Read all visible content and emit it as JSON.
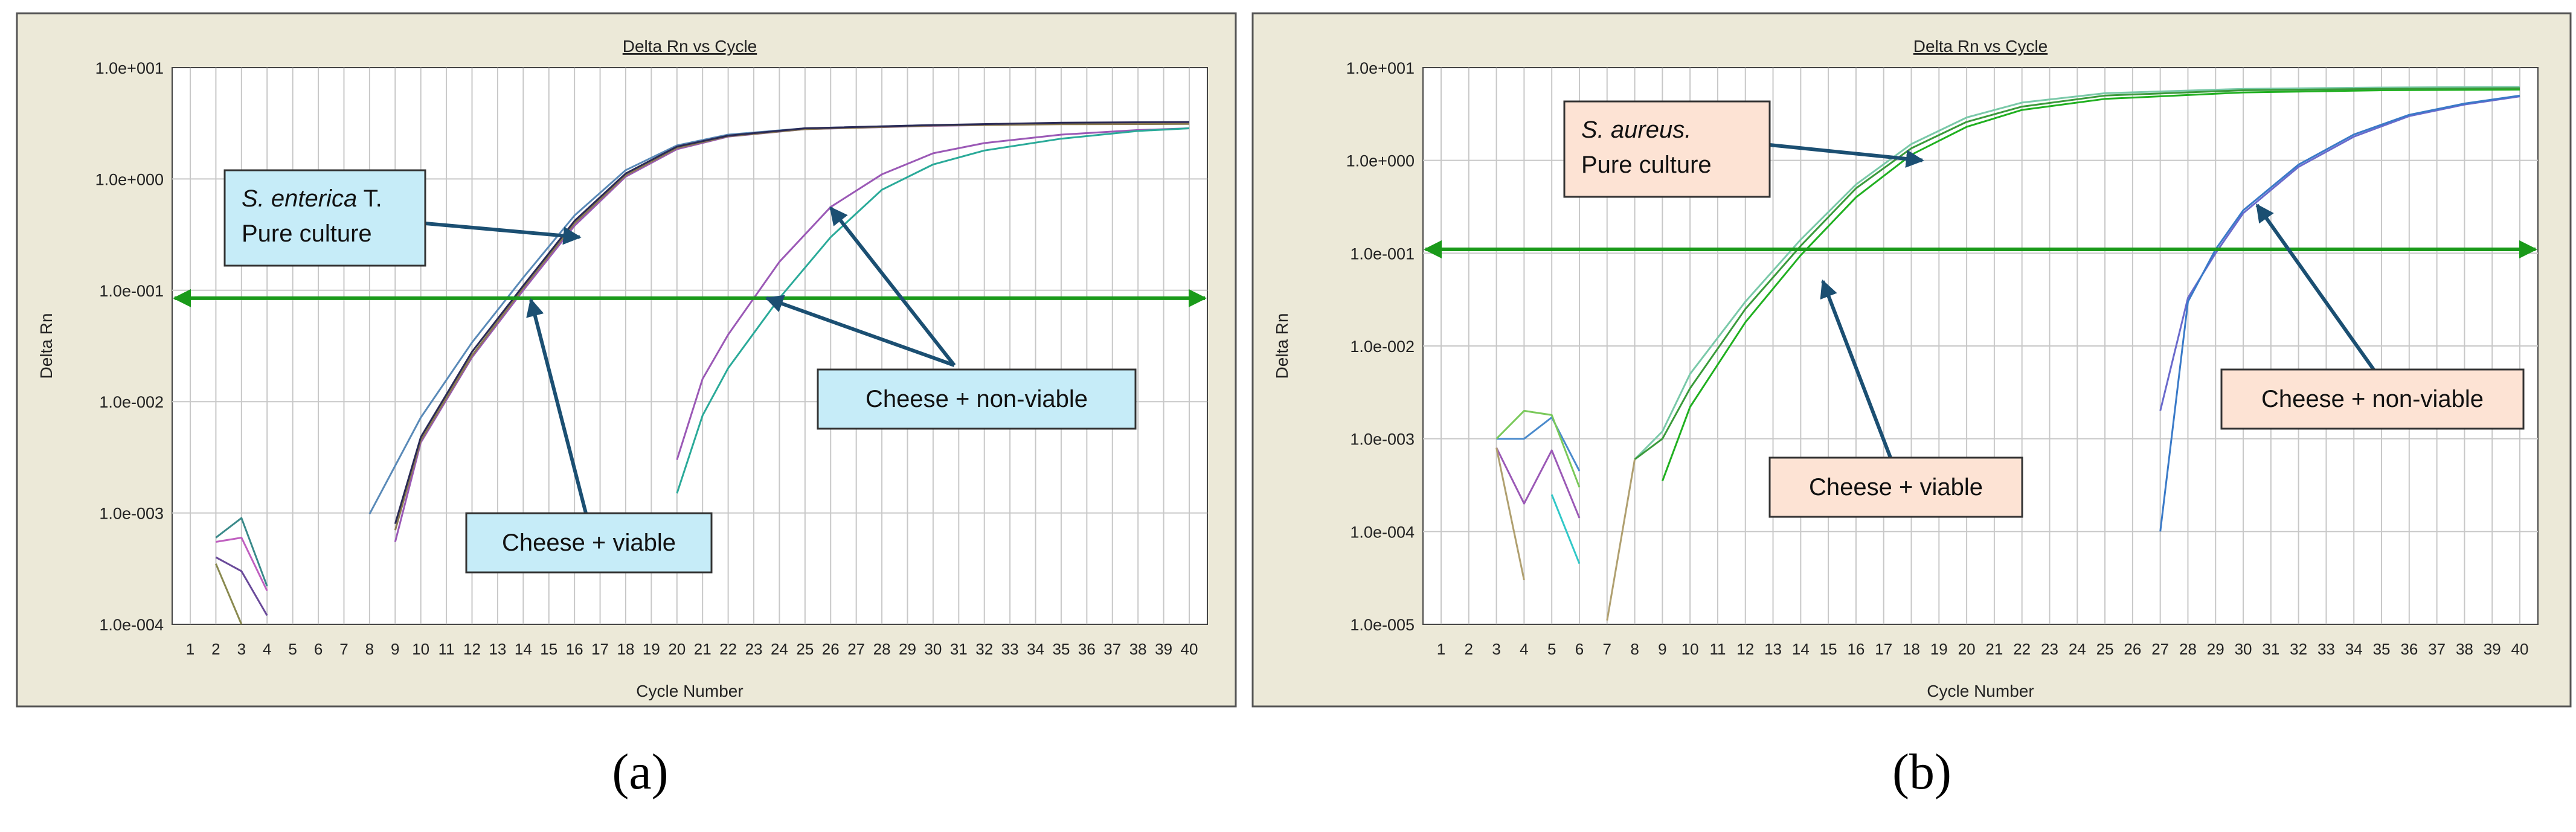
{
  "chart_data": [
    {
      "type": "line",
      "panel_label": "(a)",
      "title": "Delta Rn vs Cycle",
      "xlabel": "Cycle Number",
      "ylabel": "Delta Rn",
      "y_scale": "log",
      "xlim": [
        1,
        40
      ],
      "ylim": [
        0.0001,
        10
      ],
      "x_ticks": [
        1,
        2,
        3,
        4,
        5,
        6,
        7,
        8,
        9,
        10,
        11,
        12,
        13,
        14,
        15,
        16,
        17,
        18,
        19,
        20,
        21,
        22,
        23,
        24,
        25,
        26,
        27,
        28,
        29,
        30,
        31,
        32,
        33,
        34,
        35,
        36,
        37,
        38,
        39,
        40
      ],
      "y_ticks": [
        0.0001,
        0.001,
        0.01,
        0.1,
        1,
        10
      ],
      "y_tick_labels": [
        "1.0e-004",
        "1.0e-003",
        "1.0e-002",
        "1.0e-001",
        "1.0e+000",
        "1.0e+001"
      ],
      "grid": true,
      "threshold": 0.085,
      "threshold_color": "#1a9a1a",
      "series": [
        {
          "color": "#5a8ab8",
          "points": [
            [
              8,
              0.00098
            ],
            [
              10,
              0.0072
            ],
            [
              12,
              0.034
            ],
            [
              14,
              0.13
            ],
            [
              16,
              0.47
            ],
            [
              18,
              1.2
            ],
            [
              20,
              2.0
            ],
            [
              22,
              2.5
            ],
            [
              25,
              2.85
            ],
            [
              30,
              3.05
            ],
            [
              35,
              3.15
            ],
            [
              40,
              3.2
            ]
          ]
        },
        {
          "color": "#9b59b6",
          "points": [
            [
              9,
              0.00055
            ],
            [
              10,
              0.0043
            ],
            [
              12,
              0.025
            ],
            [
              14,
              0.1
            ],
            [
              16,
              0.38
            ],
            [
              18,
              1.05
            ],
            [
              20,
              1.85
            ],
            [
              22,
              2.4
            ],
            [
              25,
              2.8
            ],
            [
              30,
              3.0
            ],
            [
              35,
              3.12
            ],
            [
              40,
              3.15
            ]
          ]
        },
        {
          "color": "#8a7a50",
          "points": [
            [
              9,
              0.0007
            ],
            [
              10,
              0.0045
            ],
            [
              12,
              0.026
            ],
            [
              14,
              0.105
            ],
            [
              16,
              0.4
            ],
            [
              18,
              1.08
            ],
            [
              20,
              1.9
            ],
            [
              22,
              2.42
            ],
            [
              25,
              2.8
            ],
            [
              30,
              3.02
            ],
            [
              35,
              3.1
            ],
            [
              40,
              3.12
            ]
          ]
        },
        {
          "color": "#2a2a55",
          "points": [
            [
              9,
              0.0008
            ],
            [
              10,
              0.0048
            ],
            [
              12,
              0.028
            ],
            [
              14,
              0.11
            ],
            [
              16,
              0.42
            ],
            [
              18,
              1.12
            ],
            [
              20,
              1.95
            ],
            [
              22,
              2.45
            ],
            [
              25,
              2.85
            ],
            [
              30,
              3.05
            ],
            [
              35,
              3.2
            ],
            [
              40,
              3.25
            ]
          ]
        },
        {
          "color": "#9b59b6",
          "points": [
            [
              20,
              0.003
            ],
            [
              21,
              0.016
            ],
            [
              22,
              0.04
            ],
            [
              24,
              0.18
            ],
            [
              26,
              0.56
            ],
            [
              28,
              1.1
            ],
            [
              30,
              1.7
            ],
            [
              32,
              2.1
            ],
            [
              35,
              2.5
            ],
            [
              38,
              2.75
            ],
            [
              40,
              2.85
            ]
          ]
        },
        {
          "color": "#2aaa99",
          "points": [
            [
              20,
              0.0015
            ],
            [
              21,
              0.0075
            ],
            [
              22,
              0.02
            ],
            [
              24,
              0.085
            ],
            [
              26,
              0.3
            ],
            [
              28,
              0.8
            ],
            [
              30,
              1.35
            ],
            [
              32,
              1.8
            ],
            [
              35,
              2.3
            ],
            [
              38,
              2.7
            ],
            [
              40,
              2.85
            ]
          ]
        },
        {
          "color": "#3a8a8a",
          "points": [
            [
              2,
              0.0006
            ],
            [
              3,
              0.0009
            ],
            [
              4,
              0.00022
            ]
          ]
        },
        {
          "color": "#c060c0",
          "points": [
            [
              2,
              0.00055
            ],
            [
              3,
              0.0006
            ],
            [
              4,
              0.0002
            ]
          ]
        },
        {
          "color": "#6a4a9a",
          "points": [
            [
              2,
              0.0004
            ],
            [
              3,
              0.0003
            ],
            [
              4,
              0.00012
            ]
          ]
        },
        {
          "color": "#8a8a50",
          "points": [
            [
              2,
              0.00035
            ],
            [
              3,
              0.0001
            ]
          ]
        }
      ],
      "annotations": [
        {
          "text_html": "<tspan font-style=\"italic\">S. enterica</tspan> T.",
          "line2": "Pure culture",
          "type": "box",
          "fill": "#c6ecf8",
          "arrows": [
            [
              16.2,
              0.3
            ]
          ]
        },
        {
          "text": "Cheese + non-viable",
          "type": "box",
          "fill": "#c6ecf8",
          "arrows": [
            [
              26,
              0.55
            ],
            [
              23.5,
              0.085
            ]
          ]
        },
        {
          "text": "Cheese + viable",
          "type": "box",
          "fill": "#c6ecf8",
          "arrows": [
            [
              14.3,
              0.082
            ]
          ]
        }
      ]
    },
    {
      "type": "line",
      "panel_label": "(b)",
      "title": "Delta Rn vs Cycle",
      "xlabel": "Cycle Number",
      "ylabel": "Delta Rn",
      "y_scale": "log",
      "xlim": [
        1,
        40
      ],
      "ylim": [
        1e-05,
        10
      ],
      "x_ticks": [
        1,
        2,
        3,
        4,
        5,
        6,
        7,
        8,
        9,
        10,
        11,
        12,
        13,
        14,
        15,
        16,
        17,
        18,
        19,
        20,
        21,
        22,
        23,
        24,
        25,
        26,
        27,
        28,
        29,
        30,
        31,
        32,
        33,
        34,
        35,
        36,
        37,
        38,
        39,
        40
      ],
      "y_ticks": [
        1e-05,
        0.0001,
        0.001,
        0.01,
        0.1,
        1,
        10
      ],
      "y_tick_labels": [
        "1.0e-005",
        "1.0e-004",
        "1.0e-003",
        "1.0e-002",
        "1.0e-001",
        "1.0e+000",
        "1.0e+001"
      ],
      "grid": true,
      "threshold": 0.11,
      "threshold_color": "#1a9a1a",
      "series": [
        {
          "color": "#7ac9a9",
          "points": [
            [
              8,
              0.0006
            ],
            [
              9,
              0.0012
            ],
            [
              10,
              0.005
            ],
            [
              12,
              0.03
            ],
            [
              14,
              0.14
            ],
            [
              16,
              0.55
            ],
            [
              18,
              1.5
            ],
            [
              20,
              2.9
            ],
            [
              22,
              4.2
            ],
            [
              25,
              5.3
            ],
            [
              30,
              5.9
            ],
            [
              35,
              6.1
            ],
            [
              40,
              6.2
            ]
          ]
        },
        {
          "color": "#20b020",
          "points": [
            [
              9,
              0.00035
            ],
            [
              10,
              0.0022
            ],
            [
              12,
              0.018
            ],
            [
              14,
              0.095
            ],
            [
              16,
              0.4
            ],
            [
              18,
              1.15
            ],
            [
              20,
              2.3
            ],
            [
              22,
              3.5
            ],
            [
              25,
              4.6
            ],
            [
              30,
              5.4
            ],
            [
              35,
              5.7
            ],
            [
              40,
              5.8
            ]
          ]
        },
        {
          "color": "#3a9a3a",
          "points": [
            [
              8,
              0.0006
            ],
            [
              9,
              0.001
            ],
            [
              10,
              0.0035
            ],
            [
              12,
              0.025
            ],
            [
              14,
              0.12
            ],
            [
              16,
              0.5
            ],
            [
              18,
              1.35
            ],
            [
              20,
              2.6
            ],
            [
              22,
              3.8
            ],
            [
              25,
              5.0
            ],
            [
              30,
              5.7
            ],
            [
              35,
              5.9
            ],
            [
              40,
              6.0
            ]
          ]
        },
        {
          "color": "#6a6acc",
          "points": [
            [
              27,
              0.002
            ],
            [
              28,
              0.033
            ],
            [
              29,
              0.1
            ],
            [
              30,
              0.27
            ],
            [
              32,
              0.85
            ],
            [
              34,
              1.8
            ],
            [
              36,
              3.0
            ],
            [
              38,
              4.0
            ],
            [
              40,
              4.9
            ]
          ]
        },
        {
          "color": "#3a7ac8",
          "points": [
            [
              27,
              0.0001
            ],
            [
              28,
              0.03
            ],
            [
              29,
              0.11
            ],
            [
              30,
              0.29
            ],
            [
              32,
              0.9
            ],
            [
              34,
              1.9
            ],
            [
              36,
              3.1
            ],
            [
              38,
              4.1
            ],
            [
              40,
              5.0
            ]
          ]
        },
        {
          "color": "#4a8acc",
          "points": [
            [
              3,
              0.001
            ],
            [
              4,
              0.001
            ],
            [
              5,
              0.0017
            ],
            [
              6,
              0.00045
            ]
          ]
        },
        {
          "color": "#7ac95a",
          "points": [
            [
              3,
              0.001
            ],
            [
              4,
              0.002
            ],
            [
              5,
              0.0018
            ],
            [
              6,
              0.0003
            ]
          ]
        },
        {
          "color": "#9b59b6",
          "points": [
            [
              3,
              0.0008
            ],
            [
              4,
              0.0002
            ],
            [
              5,
              0.00075
            ],
            [
              6,
              0.00014
            ]
          ]
        },
        {
          "color": "#30c8c8",
          "points": [
            [
              5,
              0.00025
            ],
            [
              6,
              4.5e-05
            ]
          ]
        },
        {
          "color": "#b0a070",
          "points": [
            [
              3,
              0.0008
            ],
            [
              4,
              3e-05
            ]
          ]
        },
        {
          "color": "#b0a070",
          "points": [
            [
              7,
              1.1e-05
            ],
            [
              8,
              0.0006
            ]
          ]
        }
      ],
      "annotations": [
        {
          "text_html": "<tspan font-style=\"italic\">S. aureus.</tspan>",
          "line2": "Pure culture",
          "type": "box",
          "fill": "#fde3d4",
          "arrows": [
            [
              18.4,
              1.0
            ]
          ]
        },
        {
          "text": "Cheese + viable",
          "type": "box",
          "fill": "#fde3d4",
          "arrows": [
            [
              14.8,
              0.05
            ]
          ]
        },
        {
          "text": "Cheese + non-viable",
          "type": "box",
          "fill": "#fde3d4",
          "arrows": [
            [
              30.5,
              0.33
            ]
          ]
        }
      ]
    }
  ]
}
